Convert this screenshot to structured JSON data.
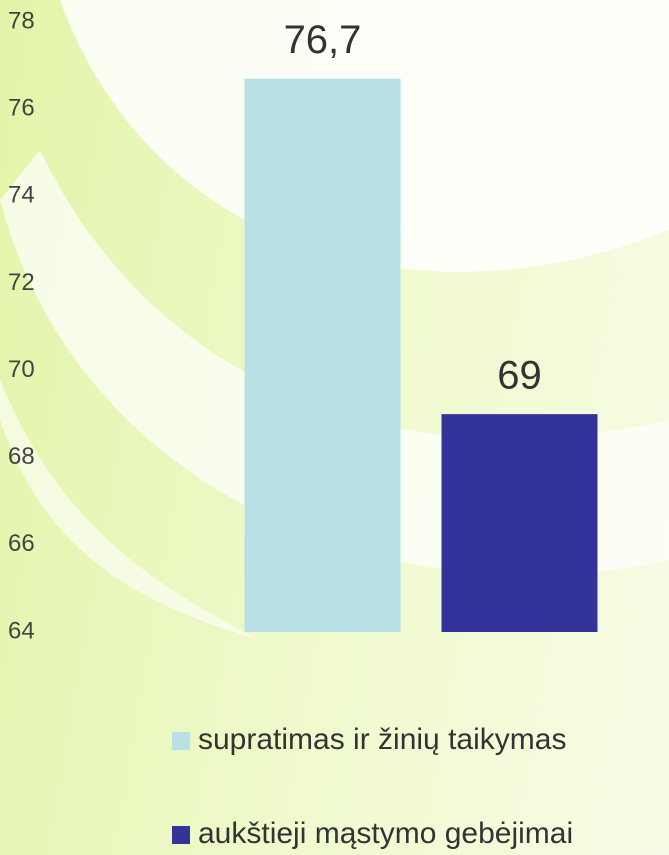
{
  "chart_data": {
    "type": "bar",
    "categories": [
      null
    ],
    "series": [
      {
        "name": "supratimas ir žinių taikymas",
        "color": "#b9e0e4",
        "values": [
          76.7
        ],
        "value_labels": [
          "76,7"
        ]
      },
      {
        "name": "aukštieji mąstymo gebėjimai",
        "color": "#343399",
        "values": [
          69
        ]
      }
    ],
    "ylim": [
      64,
      78
    ],
    "yticks": [
      64,
      66,
      68,
      70,
      72,
      74,
      76,
      78
    ],
    "grid": false,
    "legend": "bottom"
  }
}
